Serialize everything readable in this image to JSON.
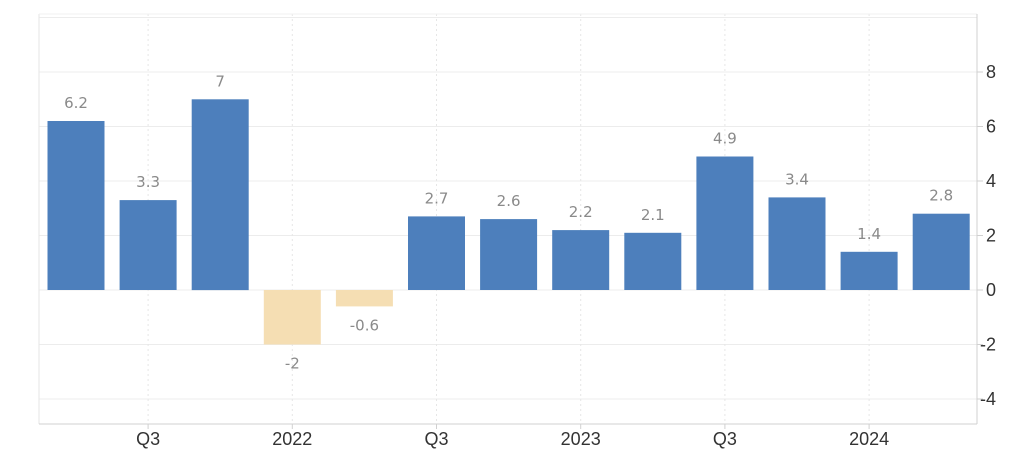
{
  "chart_data": {
    "type": "bar",
    "title": "",
    "xlabel": "",
    "ylabel": "",
    "categories": [
      "2021-Q2",
      "2021-Q3",
      "2021-Q4",
      "2022-Q1",
      "2022-Q2",
      "2022-Q3",
      "2022-Q4",
      "2023-Q1",
      "2023-Q2",
      "2023-Q3",
      "2023-Q4",
      "2024-Q1",
      "2024-Q2"
    ],
    "values": [
      6.2,
      3.3,
      7,
      -2,
      -0.6,
      2.7,
      2.6,
      2.2,
      2.1,
      4.9,
      3.4,
      1.4,
      2.8
    ],
    "value_labels": [
      "6.2",
      "3.3",
      "7",
      "-2",
      "-0.6",
      "2.7",
      "2.6",
      "2.2",
      "2.1",
      "4.9",
      "3.4",
      "1.4",
      "2.8"
    ],
    "x_tick_labels": [
      {
        "category_index": 1,
        "label": "Q3"
      },
      {
        "category_index": 3,
        "label": "2022"
      },
      {
        "category_index": 5,
        "label": "Q3"
      },
      {
        "category_index": 7,
        "label": "2023"
      },
      {
        "category_index": 9,
        "label": "Q3"
      },
      {
        "category_index": 11,
        "label": "2024"
      }
    ],
    "y_ticks": [
      8,
      6,
      4,
      2,
      0,
      -2,
      -4
    ],
    "ylim": [
      -5,
      10
    ],
    "y_axis_side": "right",
    "grid": true,
    "positive_color": "#4d7fbc",
    "negative_color": "#f5deb3"
  }
}
